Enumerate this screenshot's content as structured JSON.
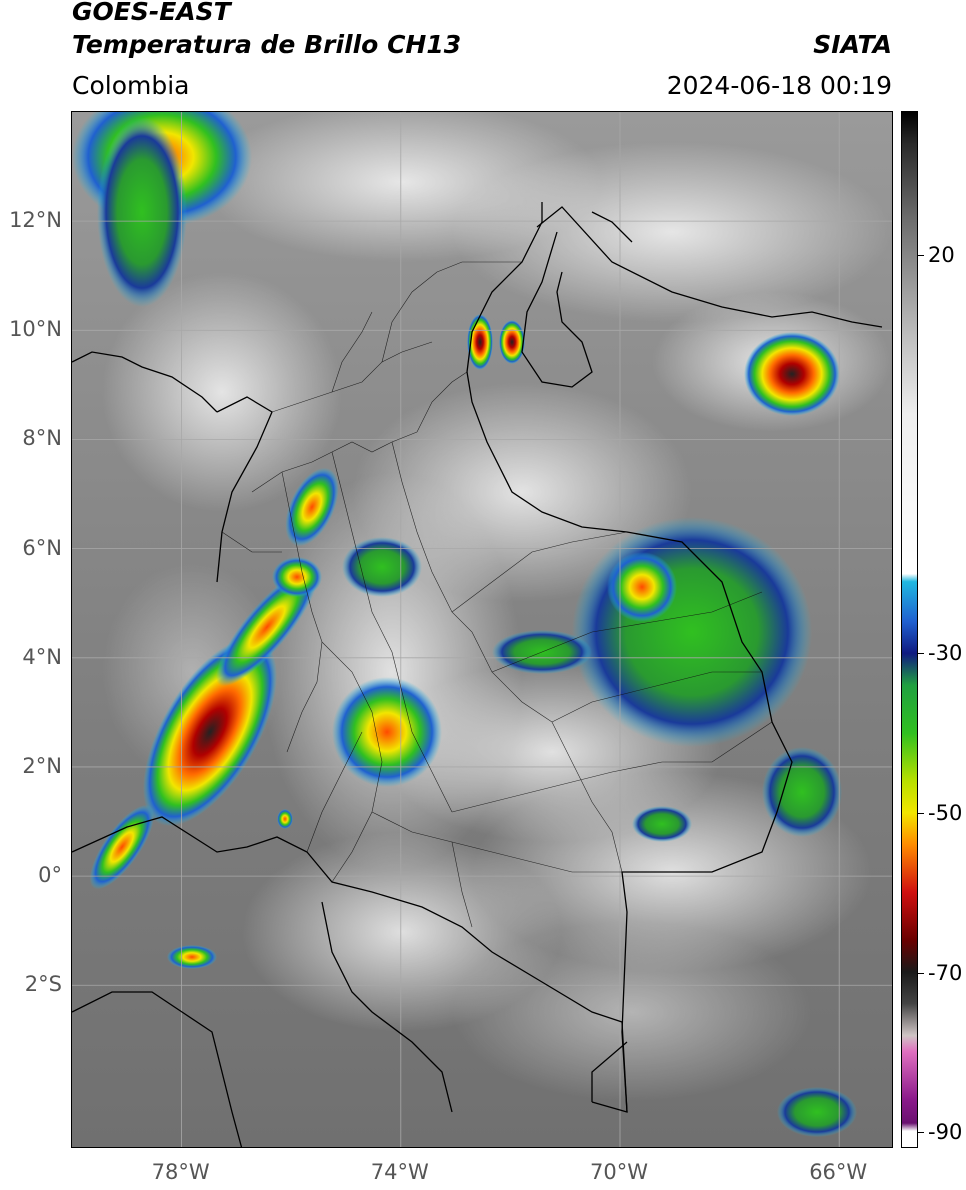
{
  "header": {
    "satellite": "GOES-EAST",
    "product": "Temperatura de Brillo CH13",
    "region": "Colombia",
    "brand": "SIATA",
    "timestamp": "2024-06-18 00:19"
  },
  "map": {
    "lat_labels": [
      {
        "text": "12°N",
        "value": 12
      },
      {
        "text": "10°N",
        "value": 10
      },
      {
        "text": "8°N",
        "value": 8
      },
      {
        "text": "6°N",
        "value": 6
      },
      {
        "text": "4°N",
        "value": 4
      },
      {
        "text": "2°N",
        "value": 2
      },
      {
        "text": "0°",
        "value": 0
      },
      {
        "text": "2°S",
        "value": -2
      }
    ],
    "lon_labels": [
      {
        "text": "78°W",
        "value": -78
      },
      {
        "text": "74°W",
        "value": -74
      },
      {
        "text": "70°W",
        "value": -70
      },
      {
        "text": "66°W",
        "value": -66
      }
    ],
    "extent": {
      "lon_min": -80,
      "lon_max": -65,
      "lat_min": -5,
      "lat_max": 14
    }
  },
  "colorbar": {
    "ticks": [
      {
        "text": "20",
        "value": 20
      },
      {
        "text": "-30",
        "value": -30
      },
      {
        "text": "-50",
        "value": -50
      },
      {
        "text": "-70",
        "value": -70
      },
      {
        "text": "-90",
        "value": -90
      }
    ],
    "range": [
      -92,
      38
    ],
    "colors": {
      "cold_top": "#ffffff",
      "purple": "#8b1a8b",
      "magenta": "#e070c0",
      "dark": "#1a1a1a",
      "red": "#d01010",
      "orange": "#ff8c00",
      "yellow": "#f2e600",
      "green": "#30c020",
      "dark_blue": "#101a80",
      "blue": "#2060d0",
      "cyan": "#20b8e0",
      "light_gray": "#eeeeee",
      "black": "#000000"
    }
  }
}
